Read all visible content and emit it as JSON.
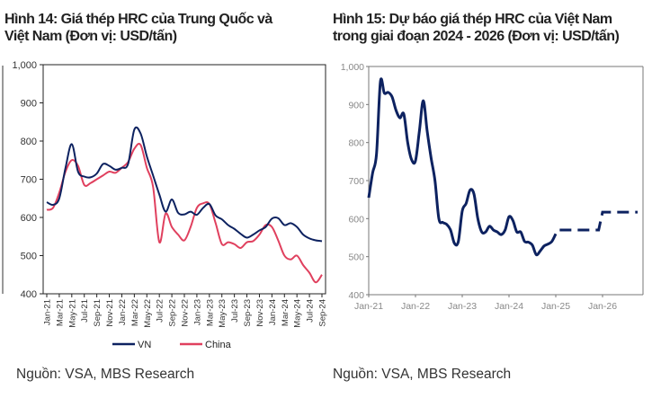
{
  "charts_text": {
    "left_title_line1": "Hình 14: Giá thép HRC của Trung Quốc và",
    "left_title_line2": "Việt Nam (Đơn vị: USD/tấn)",
    "right_title_line1": "Hình 15: Dự báo giá thép HRC của Việt Nam",
    "right_title_line2": "trong giai đoạn 2024 - 2026 (Đơn vị: USD/tấn)",
    "left_source": "Nguồn: VSA, MBS Research",
    "right_source": "Nguồn: VSA, MBS Research"
  },
  "chart_data": [
    {
      "type": "line",
      "title": "Hình 14: Giá thép HRC của Trung Quốc và Việt Nam (Đơn vị: USD/tấn)",
      "ylim": [
        400,
        1000
      ],
      "yticks": [
        "400",
        "500",
        "600",
        "700",
        "800",
        "900",
        "1,000"
      ],
      "xticks": [
        "Jan-21",
        "Mar-21",
        "May-21",
        "Jul-21",
        "Sep-21",
        "Nov-21",
        "Jan-22",
        "Mar-22",
        "May-22",
        "Jul-22",
        "Sep-22",
        "Nov-22",
        "Jan-23",
        "Mar-23",
        "May-23",
        "Jul-23",
        "Sep-23",
        "Nov-23",
        "Jan-24",
        "Mar-24",
        "May-24",
        "Jul-24",
        "Sep-24"
      ],
      "x_range": [
        "Jan-21",
        "Sep-24"
      ],
      "grid": false,
      "legend": "bottom",
      "series": [
        {
          "name": "VN",
          "color": "#0d2260",
          "values": [
            640,
            633,
            650,
            730,
            792,
            720,
            707,
            705,
            715,
            740,
            735,
            725,
            730,
            740,
            830,
            820,
            760,
            710,
            660,
            615,
            647,
            612,
            608,
            615,
            607,
            625,
            635,
            605,
            595,
            580,
            570,
            557,
            547,
            555,
            566,
            575,
            597,
            598,
            580,
            585,
            575,
            555,
            545,
            540,
            538
          ]
        },
        {
          "name": "China",
          "color": "#e0405e",
          "values": [
            620,
            625,
            665,
            720,
            750,
            735,
            685,
            690,
            700,
            710,
            720,
            717,
            730,
            745,
            780,
            790,
            730,
            680,
            535,
            610,
            575,
            555,
            540,
            575,
            625,
            637,
            635,
            585,
            530,
            535,
            530,
            520,
            535,
            538,
            555,
            580,
            575,
            540,
            500,
            490,
            500,
            475,
            455,
            430,
            450
          ]
        }
      ]
    },
    {
      "type": "line",
      "title": "Hình 15: Dự báo giá thép HRC của Việt Nam trong giai đoạn 2024 - 2026 (Đơn vị: USD/tấn)",
      "ylim": [
        400,
        1000
      ],
      "yticks": [
        "400",
        "500",
        "600",
        "700",
        "800",
        "900",
        "1,000"
      ],
      "xticks": [
        "Jan-21",
        "Jan-22",
        "Jan-23",
        "Jan-24",
        "Jan-25",
        "Jan-26"
      ],
      "grid": false,
      "color": "#0d2260",
      "actual": {
        "start": "Jan-21",
        "values": [
          655,
          720,
          770,
          960,
          930,
          932,
          920,
          885,
          865,
          875,
          800,
          755,
          752,
          830,
          910,
          830,
          760,
          700,
          600,
          590,
          585,
          570,
          535,
          540,
          620,
          640,
          675,
          665,
          600,
          565,
          565,
          580,
          570,
          565,
          558,
          570,
          605,
          595,
          565,
          565,
          540,
          538,
          530,
          505,
          515,
          528,
          533,
          540,
          560
        ]
      },
      "forecast": {
        "style": "dashed",
        "points": [
          [
            "Feb-25",
            570
          ],
          [
            "Dec-25",
            570
          ],
          [
            "Jan-26",
            617
          ],
          [
            "Oct-26",
            617
          ]
        ]
      }
    }
  ]
}
